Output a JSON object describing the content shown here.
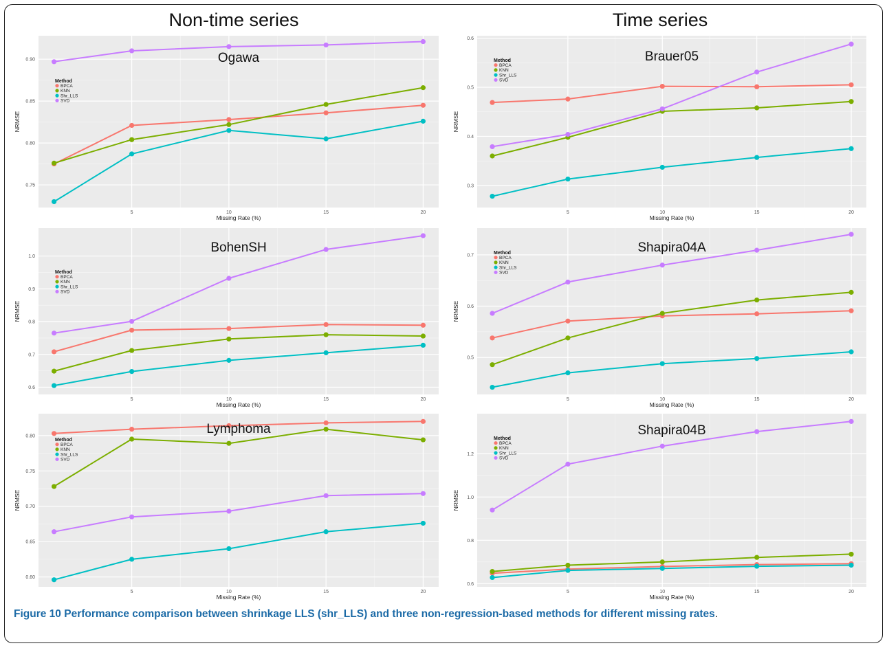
{
  "headings": {
    "left": "Non-time series",
    "right": "Time series"
  },
  "caption": {
    "label": "Figure 10",
    "text": "Performance comparison between shrinkage LLS (shr_LLS) and three non-regression-based methods for different missing rates",
    "end": "."
  },
  "colors": {
    "BPCA": "#f8766d",
    "KNN": "#7cae00",
    "Shr_LLS": "#00bfc4",
    "SVD": "#c77cff",
    "panel_bg": "#ebebeb",
    "grid": "#ffffff"
  },
  "chart_data": [
    {
      "type": "line",
      "title": "Ogawa",
      "xlabel": "Missing Rate (%)",
      "ylabel": "NRMSE",
      "x": [
        1,
        5,
        10,
        15,
        20
      ],
      "xticks": [
        5,
        10,
        15,
        20
      ],
      "xlim": [
        0.2,
        20.8
      ],
      "ylim": [
        0.723,
        0.928
      ],
      "yticks": [
        0.75,
        0.8,
        0.85,
        0.9
      ],
      "ytick_labels": [
        "0.75",
        "0.80",
        "0.85",
        "0.90"
      ],
      "legend": {
        "title": "Method",
        "position": "left"
      },
      "series": [
        {
          "name": "BPCA",
          "values": [
            0.775,
            0.821,
            0.828,
            0.836,
            0.845
          ]
        },
        {
          "name": "KNN",
          "values": [
            0.776,
            0.804,
            0.822,
            0.846,
            0.866
          ]
        },
        {
          "name": "Shr_LLS",
          "values": [
            0.73,
            0.787,
            0.815,
            0.805,
            0.826
          ]
        },
        {
          "name": "SVD",
          "values": [
            0.897,
            0.91,
            0.915,
            0.917,
            0.921
          ]
        }
      ]
    },
    {
      "type": "line",
      "title": "Brauer05",
      "xlabel": "Missing Rate (%)",
      "ylabel": "NRMSE",
      "x": [
        1,
        5,
        10,
        15,
        20
      ],
      "xticks": [
        5,
        10,
        15,
        20
      ],
      "xlim": [
        0.2,
        20.8
      ],
      "ylim": [
        0.255,
        0.605
      ],
      "yticks": [
        0.3,
        0.4,
        0.5,
        0.6
      ],
      "ytick_labels": [
        "0.3",
        "0.4",
        "0.5",
        "0.6"
      ],
      "legend": {
        "title": "Method",
        "position": "left"
      },
      "series": [
        {
          "name": "BPCA",
          "values": [
            0.469,
            0.476,
            0.502,
            0.501,
            0.505
          ]
        },
        {
          "name": "KNN",
          "values": [
            0.36,
            0.398,
            0.451,
            0.458,
            0.471
          ]
        },
        {
          "name": "Shr_LLS",
          "values": [
            0.278,
            0.313,
            0.337,
            0.357,
            0.375
          ]
        },
        {
          "name": "SVD",
          "values": [
            0.379,
            0.404,
            0.456,
            0.531,
            0.588
          ]
        }
      ]
    },
    {
      "type": "line",
      "title": "BohenSH",
      "xlabel": "Missing Rate (%)",
      "ylabel": "NRMSE",
      "x": [
        1,
        5,
        10,
        15,
        20
      ],
      "xticks": [
        5,
        10,
        15,
        20
      ],
      "xlim": [
        0.2,
        20.8
      ],
      "ylim": [
        0.578,
        1.085
      ],
      "yticks": [
        0.6,
        0.7,
        0.8,
        0.9,
        1.0
      ],
      "ytick_labels": [
        "0.6",
        "0.7",
        "0.8",
        "0.9",
        "1.0"
      ],
      "legend": {
        "title": "Method",
        "position": "left"
      },
      "series": [
        {
          "name": "BPCA",
          "values": [
            0.708,
            0.774,
            0.779,
            0.791,
            0.789
          ]
        },
        {
          "name": "KNN",
          "values": [
            0.649,
            0.712,
            0.747,
            0.76,
            0.756
          ]
        },
        {
          "name": "Shr_LLS",
          "values": [
            0.605,
            0.648,
            0.682,
            0.705,
            0.728
          ]
        },
        {
          "name": "SVD",
          "values": [
            0.765,
            0.801,
            0.932,
            1.02,
            1.062
          ]
        }
      ]
    },
    {
      "type": "line",
      "title": "Shapira04A",
      "xlabel": "Missing Rate (%)",
      "ylabel": "NRMSE",
      "x": [
        1,
        5,
        10,
        15,
        20
      ],
      "xticks": [
        5,
        10,
        15,
        20
      ],
      "xlim": [
        0.2,
        20.8
      ],
      "ylim": [
        0.428,
        0.752
      ],
      "yticks": [
        0.5,
        0.6,
        0.7
      ],
      "ytick_labels": [
        "0.5",
        "0.6",
        "0.7"
      ],
      "legend": {
        "title": "Method",
        "position": "left"
      },
      "series": [
        {
          "name": "BPCA",
          "values": [
            0.538,
            0.571,
            0.581,
            0.585,
            0.591
          ]
        },
        {
          "name": "KNN",
          "values": [
            0.486,
            0.538,
            0.586,
            0.612,
            0.627
          ]
        },
        {
          "name": "Shr_LLS",
          "values": [
            0.442,
            0.47,
            0.488,
            0.498,
            0.511
          ]
        },
        {
          "name": "SVD",
          "values": [
            0.586,
            0.647,
            0.68,
            0.709,
            0.74
          ]
        }
      ]
    },
    {
      "type": "line",
      "title": "Lymphoma",
      "xlabel": "Missing Rate (%)",
      "ylabel": "NRMSE",
      "x": [
        1,
        5,
        10,
        15,
        20
      ],
      "xticks": [
        5,
        10,
        15,
        20
      ],
      "xlim": [
        0.2,
        20.8
      ],
      "ylim": [
        0.586,
        0.831
      ],
      "yticks": [
        0.6,
        0.65,
        0.7,
        0.75,
        0.8
      ],
      "ytick_labels": [
        "0.60",
        "0.65",
        "0.70",
        "0.75",
        "0.80"
      ],
      "legend": {
        "title": "Method",
        "position": "left"
      },
      "series": [
        {
          "name": "BPCA",
          "values": [
            0.803,
            0.809,
            0.814,
            0.818,
            0.82
          ]
        },
        {
          "name": "KNN",
          "values": [
            0.728,
            0.795,
            0.789,
            0.809,
            0.794
          ]
        },
        {
          "name": "Shr_LLS",
          "values": [
            0.596,
            0.625,
            0.64,
            0.664,
            0.676
          ]
        },
        {
          "name": "SVD",
          "values": [
            0.664,
            0.685,
            0.693,
            0.715,
            0.718
          ]
        }
      ]
    },
    {
      "type": "line",
      "title": "Shapira04B",
      "xlabel": "Missing Rate (%)",
      "ylabel": "NRMSE",
      "x": [
        1,
        5,
        10,
        15,
        20
      ],
      "xticks": [
        5,
        10,
        15,
        20
      ],
      "xlim": [
        0.2,
        20.8
      ],
      "ylim": [
        0.585,
        1.385
      ],
      "yticks": [
        0.6,
        0.8,
        1.0,
        1.2
      ],
      "ytick_labels": [
        "0.6",
        "0.8",
        "1.0",
        "1.2"
      ],
      "legend": {
        "title": "Method",
        "position": "left"
      },
      "series": [
        {
          "name": "BPCA",
          "values": [
            0.648,
            0.667,
            0.679,
            0.688,
            0.692
          ]
        },
        {
          "name": "KNN",
          "values": [
            0.656,
            0.685,
            0.7,
            0.721,
            0.736
          ]
        },
        {
          "name": "Shr_LLS",
          "values": [
            0.628,
            0.661,
            0.67,
            0.68,
            0.685
          ]
        },
        {
          "name": "SVD",
          "values": [
            0.94,
            1.152,
            1.235,
            1.302,
            1.349
          ]
        }
      ]
    }
  ]
}
